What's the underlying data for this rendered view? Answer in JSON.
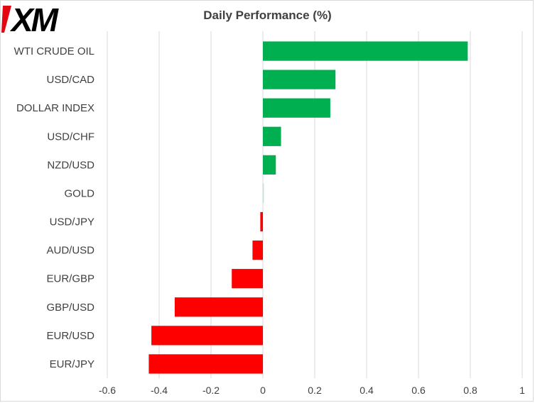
{
  "logo": {
    "text": "XM",
    "color": "#e30613",
    "ink": "#000000"
  },
  "chart_data": {
    "type": "bar",
    "orientation": "horizontal",
    "title": "Daily Performance (%)",
    "xlabel": "",
    "ylabel": "",
    "categories": [
      "WTI CRUDE OIL",
      "USD/CAD",
      "DOLLAR INDEX",
      "USD/CHF",
      "NZD/USD",
      "GOLD",
      "USD/JPY",
      "AUD/USD",
      "EUR/GBP",
      "GBP/USD",
      "EUR/USD",
      "EUR/JPY"
    ],
    "values": [
      0.79,
      0.28,
      0.26,
      0.07,
      0.05,
      0.005,
      -0.01,
      -0.04,
      -0.12,
      -0.34,
      -0.43,
      -0.44
    ],
    "xlim": [
      -0.6,
      1
    ],
    "xticks": [
      "-0.6",
      "-0.4",
      "-0.2",
      "0",
      "0.2",
      "0.4",
      "0.6",
      "0.8",
      "1"
    ],
    "xtick_values": [
      -0.6,
      -0.4,
      -0.2,
      0,
      0.2,
      0.4,
      0.6,
      0.8,
      1
    ],
    "grid": "vertical",
    "legend": "none",
    "colors": {
      "positive": "#00b050",
      "negative": "#ff0000",
      "grid": "#d9d9d9",
      "text": "#404040"
    }
  }
}
